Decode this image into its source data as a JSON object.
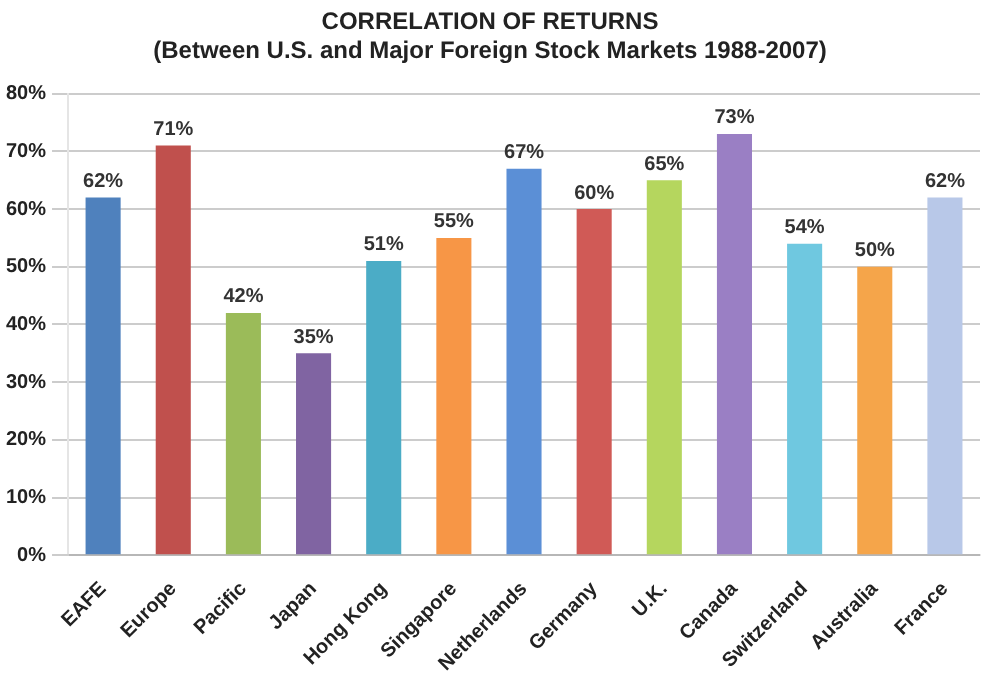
{
  "chart_data": {
    "type": "bar",
    "title": "CORRELATION OF RETURNS",
    "subtitle": "(Between U.S. and Major Foreign Stock Markets 1988-2007)",
    "categories": [
      "EAFE",
      "Europe",
      "Pacific",
      "Japan",
      "Hong Kong",
      "Singapore",
      "Netherlands",
      "Germany",
      "U.K.",
      "Canada",
      "Switzerland",
      "Australia",
      "France"
    ],
    "values": [
      62,
      71,
      42,
      35,
      51,
      55,
      67,
      60,
      65,
      73,
      54,
      50,
      62
    ],
    "value_labels": [
      "62%",
      "71%",
      "42%",
      "35%",
      "51%",
      "55%",
      "67%",
      "60%",
      "65%",
      "73%",
      "54%",
      "50%",
      "62%"
    ],
    "colors": [
      "#4f81bd",
      "#c0504d",
      "#9bbb59",
      "#8064a2",
      "#4bacc6",
      "#f79646",
      "#5b8fd6",
      "#d05a56",
      "#b5d65e",
      "#9a7fc4",
      "#6fc8e0",
      "#f5a54a",
      "#b8c8e8"
    ],
    "ylim": [
      0,
      80
    ],
    "yticks": [
      {
        "value": 0,
        "label": "0%"
      },
      {
        "value": 10,
        "label": "10%"
      },
      {
        "value": 20,
        "label": "20%"
      },
      {
        "value": 30,
        "label": "30%"
      },
      {
        "value": 40,
        "label": "40%"
      },
      {
        "value": 50,
        "label": "50%"
      },
      {
        "value": 60,
        "label": "60%"
      },
      {
        "value": 70,
        "label": "70%"
      },
      {
        "value": 80,
        "label": "80%"
      }
    ],
    "grid": "y",
    "legend": false
  }
}
